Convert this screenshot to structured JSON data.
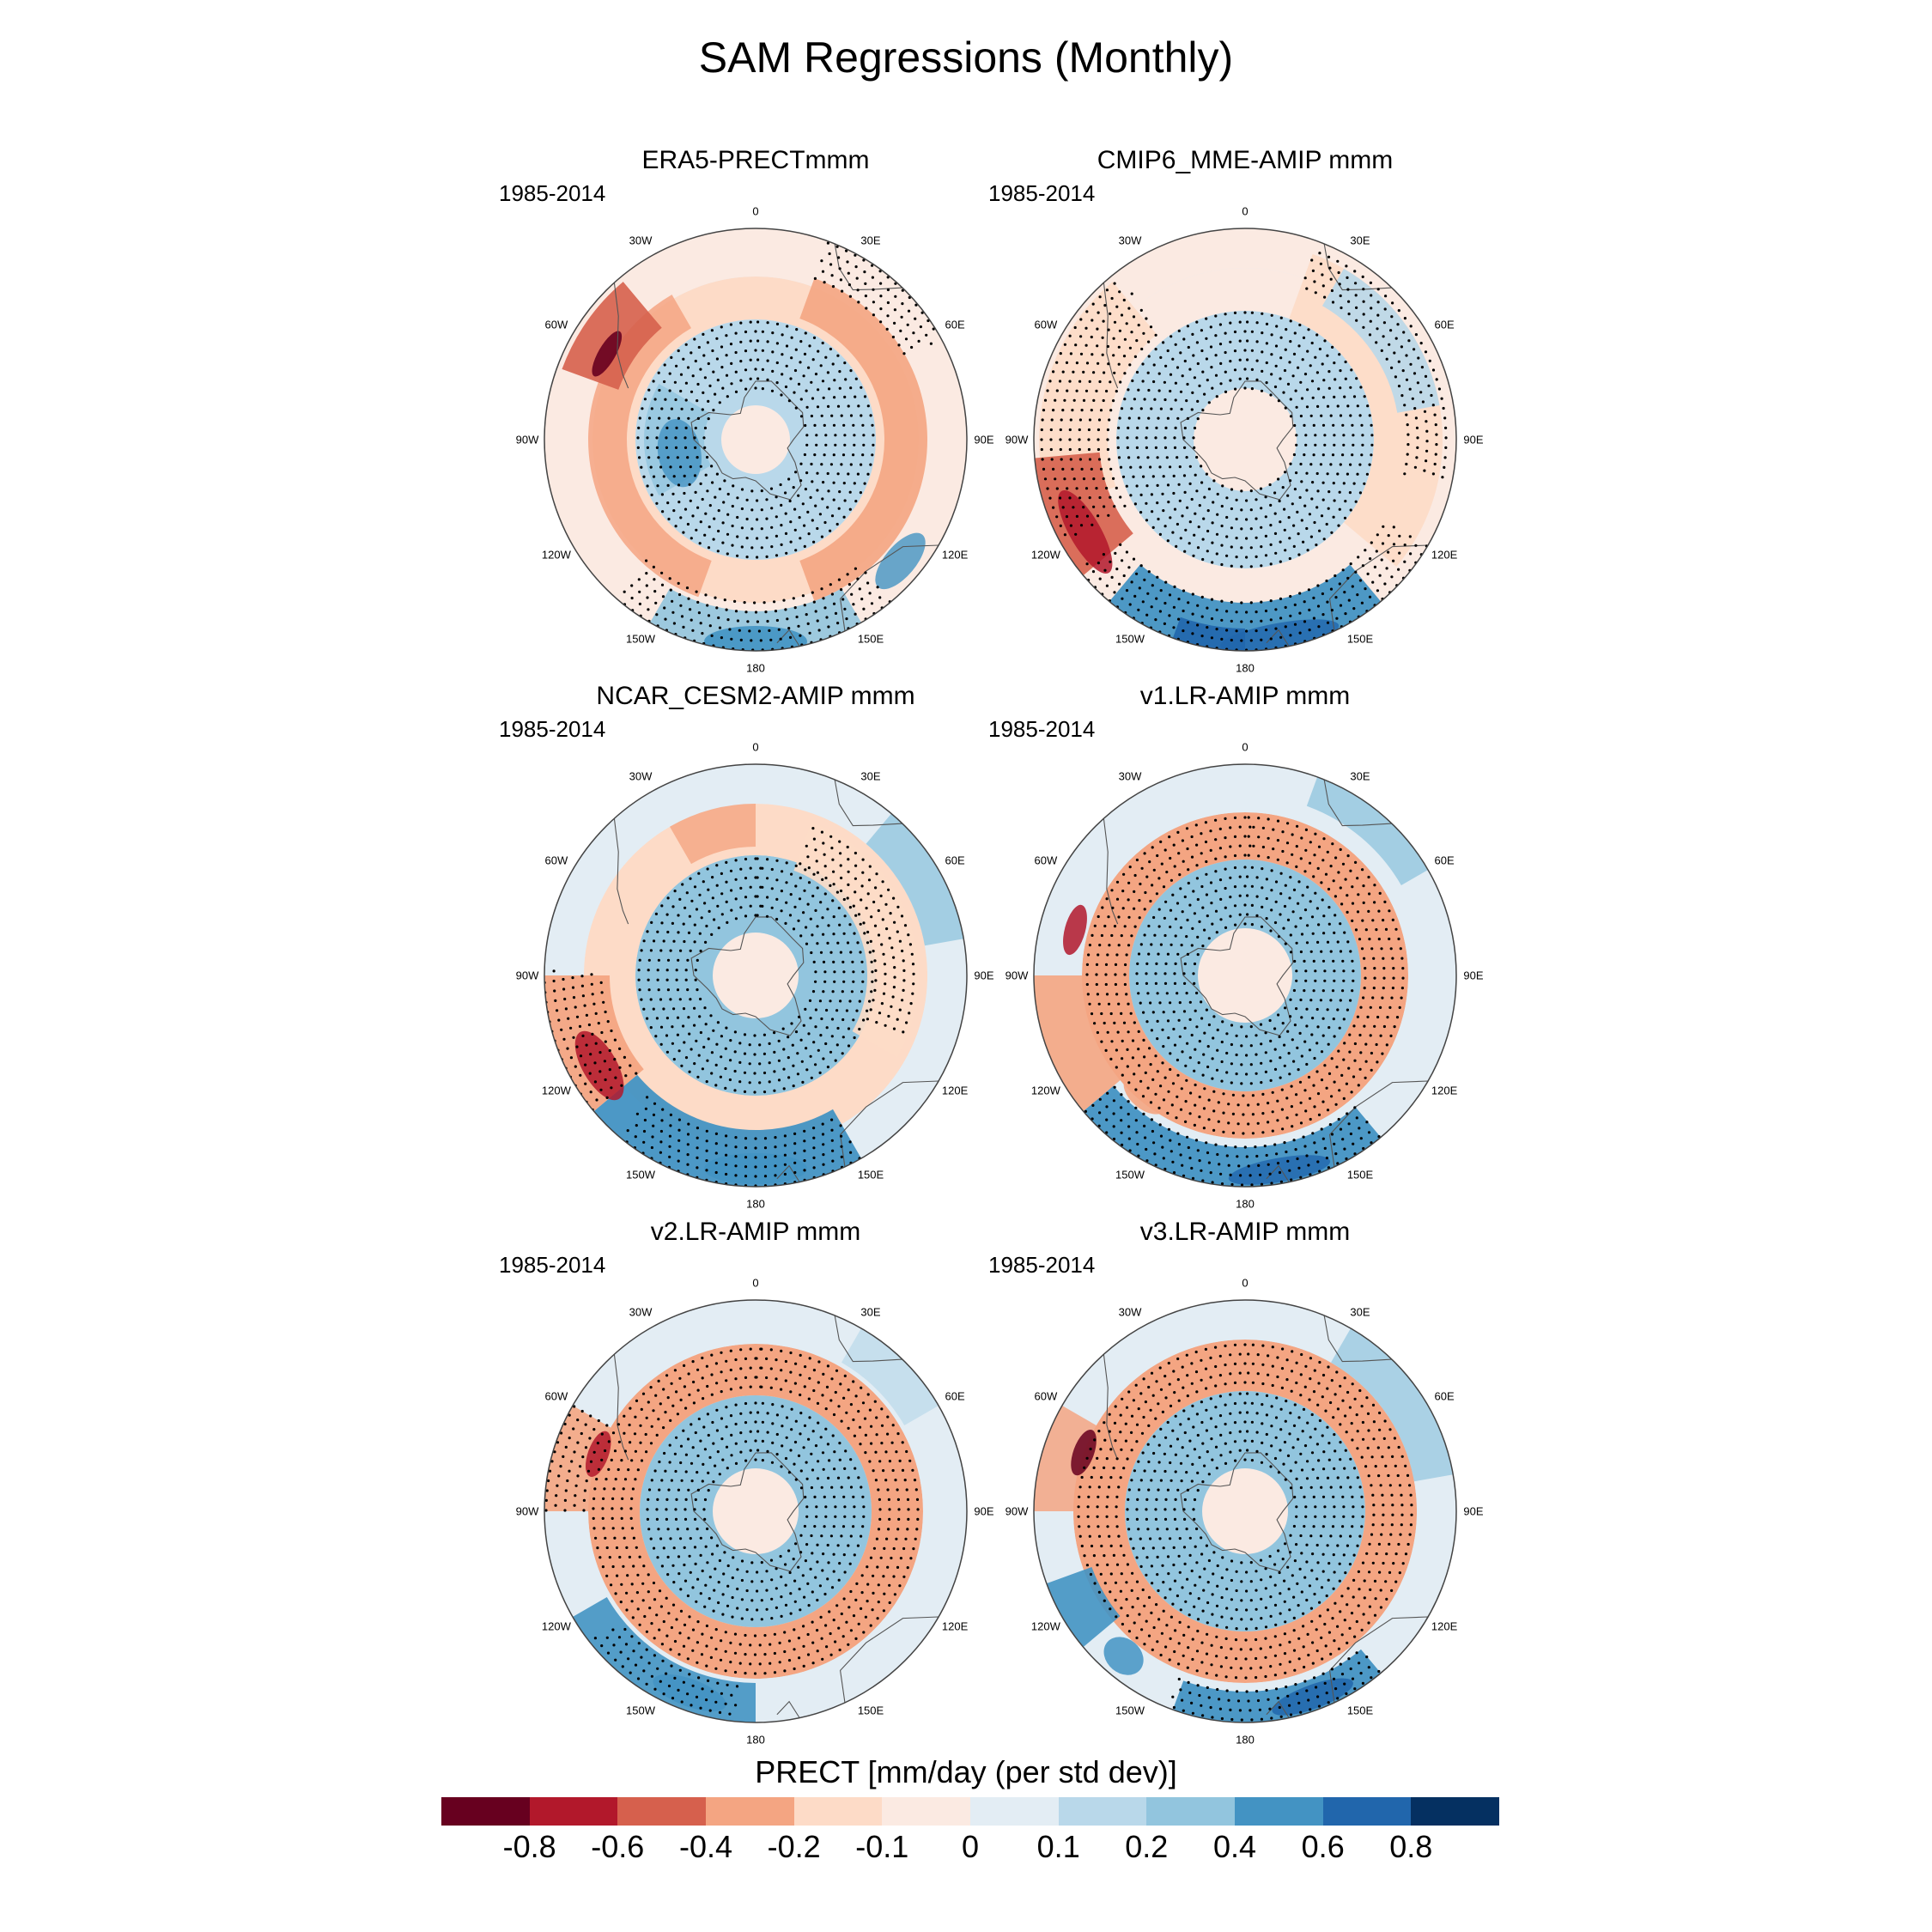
{
  "title": "SAM Regressions (Monthly)",
  "panels": [
    {
      "title": "ERA5-PRECTmmm",
      "period": "1985-2014"
    },
    {
      "title": "CMIP6_MME-AMIP  mmm",
      "period": "1985-2014"
    },
    {
      "title": "NCAR_CESM2-AMIP  mmm",
      "period": "1985-2014"
    },
    {
      "title": "v1.LR-AMIP  mmm",
      "period": "1985-2014"
    },
    {
      "title": "v2.LR-AMIP  mmm",
      "period": "1985-2014"
    },
    {
      "title": "v3.LR-AMIP  mmm",
      "period": "1985-2014"
    }
  ],
  "longitude_labels": [
    "0",
    "30E",
    "60E",
    "90E",
    "120E",
    "150E",
    "180",
    "150W",
    "120W",
    "90W",
    "60W",
    "30W"
  ],
  "colorbar": {
    "title": "PRECT [mm/day (per std dev)]",
    "ticks": [
      "-0.8",
      "-0.6",
      "-0.4",
      "-0.2",
      "-0.1",
      "0",
      "0.1",
      "0.2",
      "0.4",
      "0.6",
      "0.8"
    ],
    "colors": [
      "#67001f",
      "#b2182b",
      "#d6604d",
      "#f4a582",
      "#fddbc7",
      "#fbeae2",
      "#e3edf4",
      "#b9d8ea",
      "#92c5de",
      "#4393c3",
      "#2166ac",
      "#053061"
    ]
  }
}
